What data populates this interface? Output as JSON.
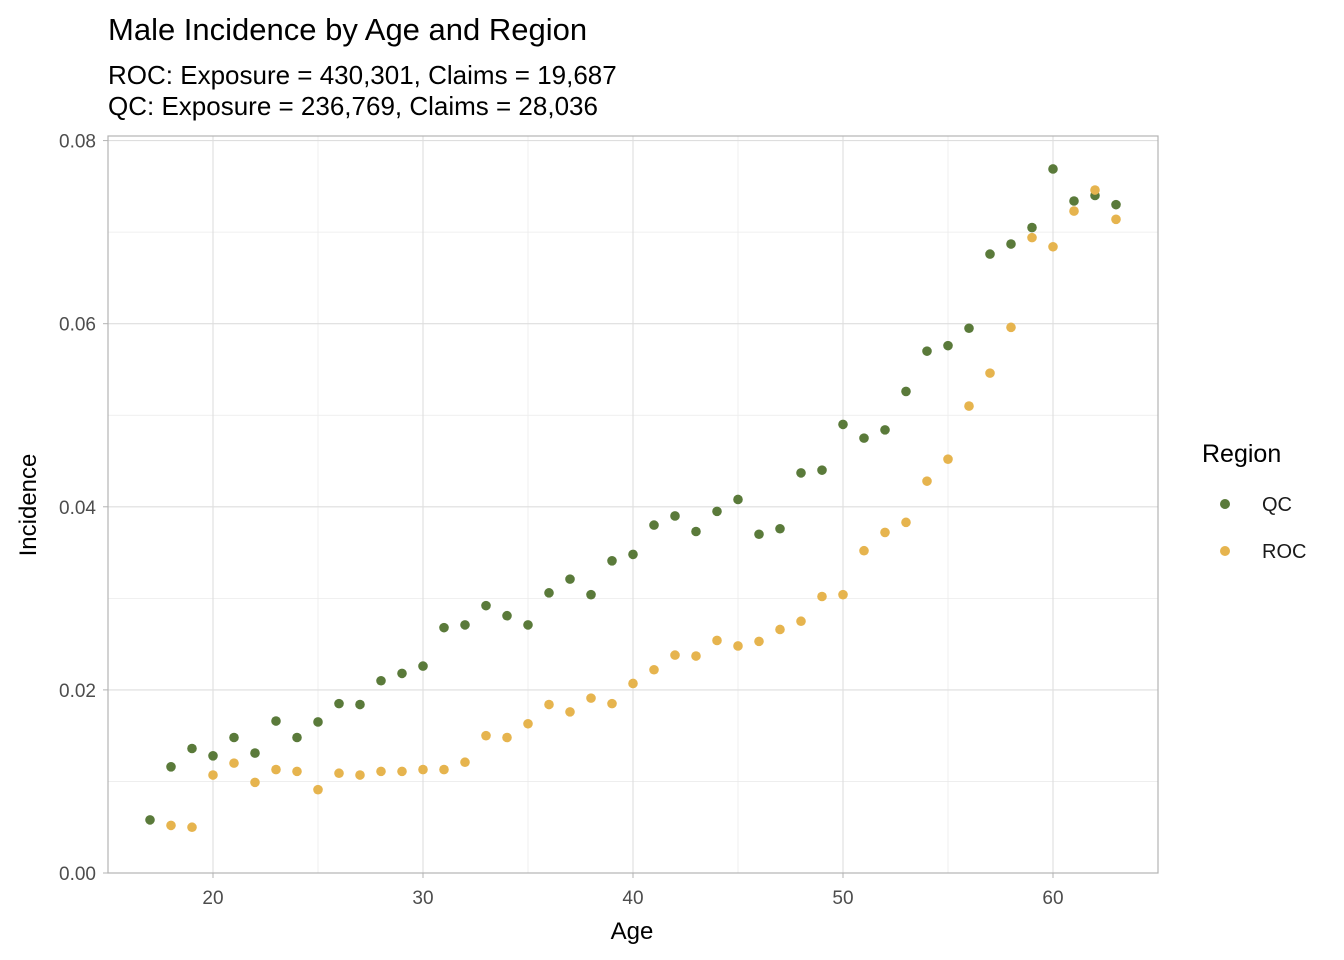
{
  "chart_data": {
    "type": "scatter",
    "title": "Male Incidence by Age and Region",
    "subtitle_lines": [
      "ROC: Exposure = 430,301, Claims = 19,687",
      "QC: Exposure = 236,769, Claims = 28,036"
    ],
    "xlabel": "Age",
    "ylabel": "Incidence",
    "xlim": [
      15,
      65
    ],
    "ylim": [
      0,
      0.0805
    ],
    "x_ticks": [
      20,
      30,
      40,
      50,
      60
    ],
    "x_tick_labels": [
      "20",
      "30",
      "40",
      "50",
      "60"
    ],
    "y_ticks": [
      0,
      0.02,
      0.04,
      0.06,
      0.08
    ],
    "y_tick_labels": [
      "0.00",
      "0.02",
      "0.04",
      "0.06",
      "0.08"
    ],
    "grid": true,
    "legend": {
      "title": "Region",
      "placement": "right"
    },
    "series": [
      {
        "name": "QC",
        "color": "#5a7a3a",
        "x": [
          17,
          18,
          19,
          20,
          21,
          22,
          23,
          24,
          25,
          26,
          27,
          28,
          29,
          30,
          31,
          32,
          33,
          34,
          35,
          36,
          37,
          38,
          39,
          40,
          41,
          42,
          43,
          44,
          45,
          46,
          47,
          48,
          49,
          50,
          51,
          52,
          53,
          54,
          55,
          56,
          57,
          58,
          59,
          60,
          61,
          62,
          63
        ],
        "y": [
          0.0058,
          0.0116,
          0.0136,
          0.0128,
          0.0148,
          0.0131,
          0.0166,
          0.0148,
          0.0165,
          0.0185,
          0.0184,
          0.021,
          0.0218,
          0.0226,
          0.0268,
          0.0271,
          0.0292,
          0.0281,
          0.0271,
          0.0306,
          0.0321,
          0.0304,
          0.0341,
          0.0348,
          0.038,
          0.039,
          0.0373,
          0.0395,
          0.0408,
          0.037,
          0.0376,
          0.0437,
          0.044,
          0.049,
          0.0475,
          0.0484,
          0.0526,
          0.057,
          0.0576,
          0.0595,
          0.0676,
          0.0687,
          0.0705,
          0.0769,
          0.0734,
          0.074,
          0.073
        ]
      },
      {
        "name": "ROC",
        "color": "#e6b44e",
        "x": [
          18,
          19,
          20,
          21,
          22,
          23,
          24,
          25,
          26,
          27,
          28,
          29,
          30,
          31,
          32,
          33,
          34,
          35,
          36,
          37,
          38,
          39,
          40,
          41,
          42,
          43,
          44,
          45,
          46,
          47,
          48,
          49,
          50,
          51,
          52,
          53,
          54,
          55,
          56,
          57,
          58,
          59,
          60,
          61,
          62,
          63
        ],
        "y": [
          0.0052,
          0.005,
          0.0107,
          0.012,
          0.0099,
          0.0113,
          0.0111,
          0.0091,
          0.0109,
          0.0107,
          0.0111,
          0.0111,
          0.0113,
          0.0113,
          0.0121,
          0.015,
          0.0148,
          0.0163,
          0.0184,
          0.0176,
          0.0191,
          0.0185,
          0.0207,
          0.0222,
          0.0238,
          0.0237,
          0.0254,
          0.0248,
          0.0253,
          0.0266,
          0.0275,
          0.0302,
          0.0304,
          0.0352,
          0.0372,
          0.0383,
          0.0428,
          0.0452,
          0.051,
          0.0546,
          0.0596,
          0.0694,
          0.0684,
          0.0723,
          0.0746,
          0.0714
        ]
      }
    ]
  }
}
